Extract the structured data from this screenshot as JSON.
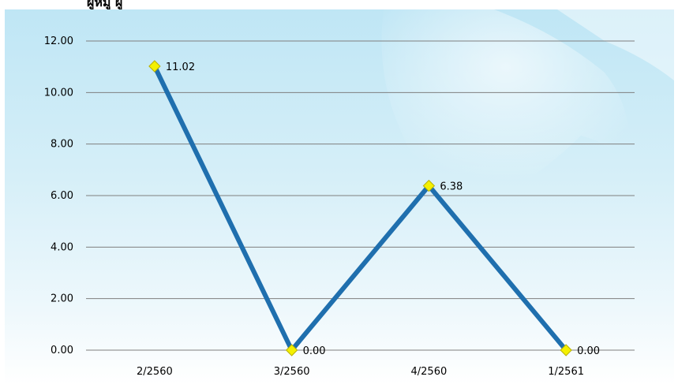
{
  "header": {
    "title": "ผู้หมู่ ผู้"
  },
  "chart_data": {
    "type": "line",
    "title": "",
    "xlabel": "",
    "ylabel": "",
    "categories": [
      "2/2560",
      "3/2560",
      "4/2560",
      "1/2561"
    ],
    "series": [
      {
        "values": [
          11.02,
          0.0,
          6.38,
          0.0
        ]
      }
    ],
    "data_labels": [
      "11.02",
      "0.00",
      "6.38",
      "0.00"
    ],
    "y_ticks": [
      "0.00",
      "2.00",
      "4.00",
      "6.00",
      "8.00",
      "10.00",
      "12.00"
    ],
    "ylim": [
      0,
      12
    ],
    "grid": true,
    "legend": "none",
    "colors": {
      "line": "#1f6fae",
      "marker_fill": "#f4f000",
      "marker_stroke": "#b8b000",
      "grid": "#7f7f7f"
    }
  }
}
